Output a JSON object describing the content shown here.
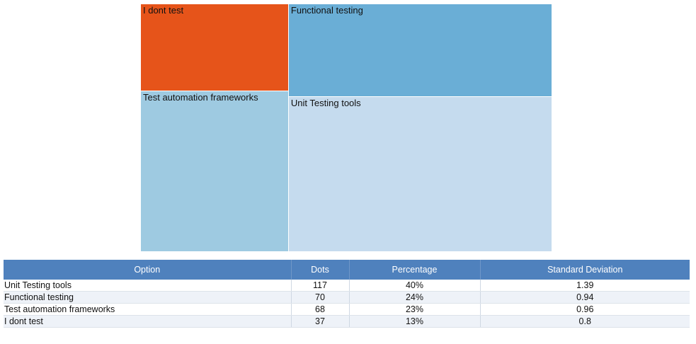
{
  "chart_data": {
    "type": "treemap",
    "series": [
      {
        "name": "Unit Testing tools",
        "value": 117,
        "color": "#c5dbee"
      },
      {
        "name": "Functional testing",
        "value": 70,
        "color": "#6aaed6"
      },
      {
        "name": "Test automation frameworks",
        "value": 68,
        "color": "#9ecae1"
      },
      {
        "name": "I dont test",
        "value": 37,
        "color": "#e6541a"
      }
    ]
  },
  "table": {
    "headers": [
      "Option",
      "Dots",
      "Percentage",
      "Standard Deviation"
    ],
    "rows": [
      [
        "Unit Testing tools",
        "117",
        "40%",
        "1.39"
      ],
      [
        "Functional testing",
        "70",
        "24%",
        "0.94"
      ],
      [
        "Test automation frameworks",
        "68",
        "23%",
        "0.96"
      ],
      [
        "I dont test",
        "37",
        "13%",
        "0.8"
      ]
    ]
  }
}
